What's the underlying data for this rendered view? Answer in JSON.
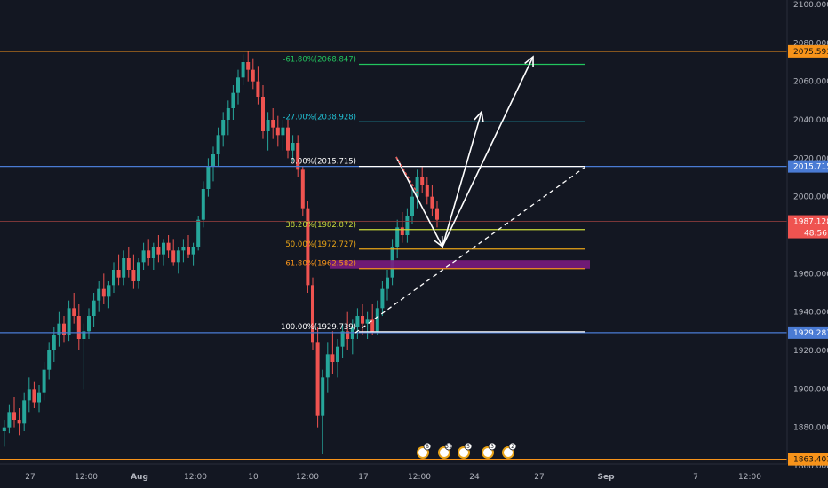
{
  "colors": {
    "bg": "#131722",
    "up": "#26a69a",
    "down": "#ef5350",
    "orange": "#f7931a",
    "blue": "#4a7bd4",
    "white": "#ffffff",
    "green": "#22c55e",
    "cyan": "#22c3d6",
    "fib382": "#c8d93a",
    "fib50": "#e8a317",
    "fib618": "#f5931c",
    "purple": "#7a1b7e",
    "price": "#ef5350",
    "axis_text": "#b2b5be"
  },
  "chart_data": {
    "type": "candlestick",
    "ylim": [
      1850,
      2105
    ],
    "y_ticks": [
      "1860.000",
      "1880.000",
      "1900.000",
      "1920.000",
      "1940.000",
      "1960.000",
      "1980.000",
      "2000.000",
      "2020.000",
      "2040.000",
      "2060.000",
      "2080.000",
      "2100.000"
    ],
    "y_tick_values": [
      1860,
      1880,
      1900,
      1920,
      1940,
      1960,
      1980,
      2000,
      2020,
      2040,
      2060,
      2080,
      2100
    ],
    "x_ticks": [
      "27",
      "12:00",
      "Aug",
      "12:00",
      "10",
      "12:00",
      "17",
      "12:00",
      "24",
      "27",
      "Sep",
      "7",
      "12:00"
    ],
    "x_tick_bold": [
      "Aug",
      "Sep"
    ],
    "horizontal_levels": [
      {
        "value": 2075.593,
        "label": "2075.593",
        "color_key": "orange"
      },
      {
        "value": 2015.715,
        "label": "2015.715",
        "color_key": "blue"
      },
      {
        "value": 1929.287,
        "label": "1929.287",
        "color_key": "blue"
      },
      {
        "value": 1863.403,
        "label": "1863.403",
        "color_key": "orange"
      }
    ],
    "current_price": {
      "value": 1987.128,
      "label": "1987.128",
      "countdown": "48:56"
    },
    "fib_levels": [
      {
        "value": 2068.847,
        "label": "-61.80%(2068.847)",
        "color_key": "green"
      },
      {
        "value": 2038.928,
        "label": "-27.00%(2038.928)",
        "color_key": "cyan"
      },
      {
        "value": 2015.715,
        "label": "0.00%(2015.715)",
        "color_key": "white"
      },
      {
        "value": 1982.872,
        "label": "38.20%(1982.872)",
        "color_key": "fib382"
      },
      {
        "value": 1972.727,
        "label": "50.00%(1972.727)",
        "color_key": "fib50"
      },
      {
        "value": 1962.582,
        "label": "61.80%(1962.582)",
        "color_key": "fib618"
      },
      {
        "value": 1929.739,
        "label": "100.00%(1929.739)",
        "color_key": "white"
      }
    ],
    "purple_zone": [
      1962.582,
      1967
    ],
    "events": [
      "8",
      "51",
      "5",
      "3",
      "2"
    ],
    "candles": [
      [
        1878,
        1884,
        1870,
        1880
      ],
      [
        1880,
        1892,
        1877,
        1888
      ],
      [
        1888,
        1896,
        1880,
        1884
      ],
      [
        1884,
        1890,
        1876,
        1882
      ],
      [
        1882,
        1898,
        1878,
        1894
      ],
      [
        1894,
        1906,
        1888,
        1900
      ],
      [
        1900,
        1904,
        1890,
        1893
      ],
      [
        1893,
        1902,
        1888,
        1898
      ],
      [
        1898,
        1914,
        1894,
        1910
      ],
      [
        1910,
        1924,
        1905,
        1920
      ],
      [
        1920,
        1932,
        1914,
        1928
      ],
      [
        1928,
        1940,
        1922,
        1934
      ],
      [
        1934,
        1938,
        1924,
        1928
      ],
      [
        1928,
        1946,
        1925,
        1942
      ],
      [
        1942,
        1950,
        1934,
        1938
      ],
      [
        1938,
        1944,
        1920,
        1926
      ],
      [
        1926,
        1934,
        1900,
        1930
      ],
      [
        1930,
        1942,
        1926,
        1938
      ],
      [
        1938,
        1950,
        1932,
        1946
      ],
      [
        1946,
        1956,
        1940,
        1952
      ],
      [
        1952,
        1960,
        1944,
        1948
      ],
      [
        1948,
        1956,
        1942,
        1954
      ],
      [
        1954,
        1966,
        1950,
        1962
      ],
      [
        1962,
        1970,
        1954,
        1958
      ],
      [
        1958,
        1972,
        1954,
        1968
      ],
      [
        1968,
        1974,
        1958,
        1962
      ],
      [
        1962,
        1970,
        1952,
        1956
      ],
      [
        1956,
        1968,
        1952,
        1966
      ],
      [
        1966,
        1976,
        1962,
        1972
      ],
      [
        1972,
        1978,
        1964,
        1968
      ],
      [
        1968,
        1976,
        1962,
        1974
      ],
      [
        1974,
        1980,
        1966,
        1970
      ],
      [
        1970,
        1978,
        1964,
        1976
      ],
      [
        1976,
        1980,
        1968,
        1972
      ],
      [
        1972,
        1978,
        1964,
        1966
      ],
      [
        1966,
        1974,
        1960,
        1972
      ],
      [
        1972,
        1978,
        1966,
        1974
      ],
      [
        1974,
        1980,
        1968,
        1970
      ],
      [
        1970,
        1976,
        1964,
        1974
      ],
      [
        1974,
        1990,
        1972,
        1988
      ],
      [
        1988,
        2008,
        1984,
        2004
      ],
      [
        2004,
        2020,
        2000,
        2016
      ],
      [
        2016,
        2026,
        2008,
        2022
      ],
      [
        2022,
        2036,
        2016,
        2032
      ],
      [
        2032,
        2044,
        2026,
        2040
      ],
      [
        2040,
        2050,
        2032,
        2046
      ],
      [
        2046,
        2058,
        2040,
        2054
      ],
      [
        2054,
        2066,
        2048,
        2062
      ],
      [
        2062,
        2074,
        2058,
        2070
      ],
      [
        2070,
        2076,
        2060,
        2066
      ],
      [
        2066,
        2072,
        2056,
        2060
      ],
      [
        2060,
        2068,
        2048,
        2052
      ],
      [
        2052,
        2058,
        2030,
        2034
      ],
      [
        2034,
        2044,
        2024,
        2040
      ],
      [
        2040,
        2046,
        2030,
        2036
      ],
      [
        2036,
        2042,
        2026,
        2032
      ],
      [
        2032,
        2040,
        2024,
        2036
      ],
      [
        2036,
        2040,
        2020,
        2024
      ],
      [
        2024,
        2032,
        2018,
        2028
      ],
      [
        2028,
        2032,
        2010,
        2014
      ],
      [
        2014,
        2016,
        1990,
        1994
      ],
      [
        1994,
        1998,
        1950,
        1954
      ],
      [
        1954,
        1958,
        1920,
        1924
      ],
      [
        1924,
        1932,
        1880,
        1886
      ],
      [
        1886,
        1910,
        1866,
        1906
      ],
      [
        1906,
        1924,
        1898,
        1918
      ],
      [
        1918,
        1930,
        1908,
        1914
      ],
      [
        1914,
        1926,
        1906,
        1922
      ],
      [
        1922,
        1934,
        1916,
        1930
      ],
      [
        1930,
        1940,
        1920,
        1926
      ],
      [
        1926,
        1936,
        1918,
        1932
      ],
      [
        1932,
        1942,
        1926,
        1938
      ],
      [
        1938,
        1944,
        1928,
        1934
      ],
      [
        1934,
        1940,
        1926,
        1936
      ],
      [
        1936,
        1944,
        1928,
        1930
      ],
      [
        1930,
        1946,
        1928,
        1942
      ],
      [
        1942,
        1956,
        1938,
        1952
      ],
      [
        1952,
        1962,
        1946,
        1958
      ],
      [
        1958,
        1978,
        1954,
        1974
      ],
      [
        1974,
        1988,
        1968,
        1984
      ],
      [
        1984,
        1992,
        1976,
        1980
      ],
      [
        1980,
        1994,
        1976,
        1990
      ],
      [
        1990,
        2004,
        1986,
        2000
      ],
      [
        2000,
        2014,
        1994,
        2010
      ],
      [
        2010,
        2016,
        2002,
        2006
      ],
      [
        2006,
        2010,
        1996,
        2000
      ],
      [
        2000,
        2006,
        1990,
        1994
      ],
      [
        1994,
        1998,
        1984,
        1988
      ]
    ]
  }
}
